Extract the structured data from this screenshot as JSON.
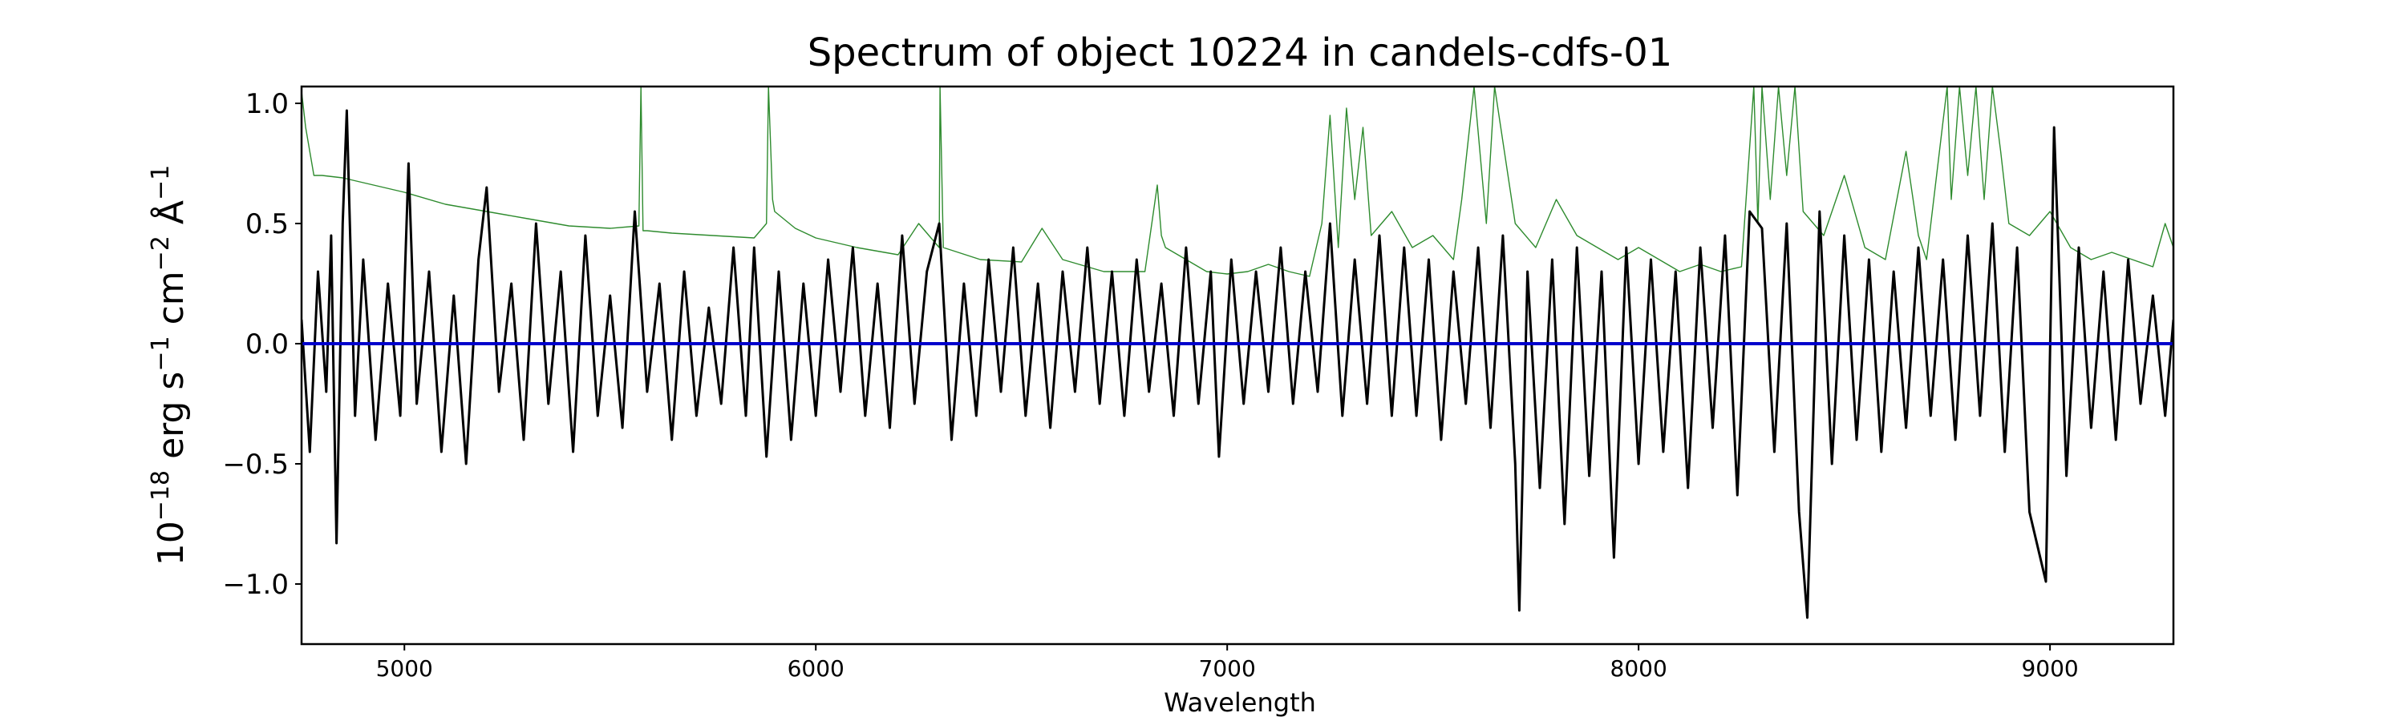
{
  "chart_data": {
    "type": "line",
    "title": "Spectrum of object 10224 in candels-cdfs-01",
    "xlabel": "Wavelength",
    "ylabel_parts": {
      "base": "10",
      "exp1": "−18",
      "erg": " erg s",
      "exp2": "−1",
      "cm": " cm",
      "exp3": "−2",
      "ang": " Å",
      "exp4": "−1"
    },
    "xlim": [
      4750,
      9300
    ],
    "ylim": [
      -1.25,
      1.07
    ],
    "x_ticks": [
      5000,
      6000,
      7000,
      8000,
      9000
    ],
    "x_tick_labels": [
      "5000",
      "6000",
      "7000",
      "8000",
      "9000"
    ],
    "y_ticks": [
      -1.0,
      -0.5,
      0.0,
      0.5,
      1.0
    ],
    "y_tick_labels": [
      "−1.0",
      "−0.5",
      "0.0",
      "0.5",
      "1.0"
    ],
    "grid": false,
    "legend": "none",
    "series": [
      {
        "role": "flux",
        "color": "#000000",
        "x": [
          4750,
          4770,
          4790,
          4810,
          4822,
          4835,
          4850,
          4860,
          4880,
          4900,
          4930,
          4960,
          4990,
          5010,
          5030,
          5060,
          5090,
          5120,
          5150,
          5180,
          5200,
          5230,
          5260,
          5290,
          5320,
          5350,
          5380,
          5410,
          5440,
          5470,
          5500,
          5530,
          5560,
          5590,
          5620,
          5650,
          5680,
          5710,
          5740,
          5770,
          5800,
          5830,
          5850,
          5880,
          5910,
          5940,
          5970,
          6000,
          6030,
          6060,
          6090,
          6120,
          6150,
          6180,
          6210,
          6240,
          6270,
          6300,
          6330,
          6360,
          6390,
          6420,
          6450,
          6480,
          6510,
          6540,
          6570,
          6600,
          6630,
          6660,
          6690,
          6720,
          6750,
          6780,
          6810,
          6840,
          6870,
          6900,
          6930,
          6960,
          6980,
          7010,
          7040,
          7070,
          7100,
          7130,
          7160,
          7190,
          7220,
          7250,
          7280,
          7310,
          7340,
          7370,
          7400,
          7430,
          7460,
          7490,
          7520,
          7550,
          7580,
          7610,
          7640,
          7670,
          7700,
          7710,
          7730,
          7760,
          7790,
          7820,
          7850,
          7880,
          7910,
          7940,
          7970,
          8000,
          8030,
          8060,
          8090,
          8120,
          8150,
          8180,
          8210,
          8240,
          8270,
          8300,
          8330,
          8360,
          8390,
          8410,
          8440,
          8470,
          8500,
          8530,
          8560,
          8590,
          8620,
          8650,
          8680,
          8710,
          8740,
          8770,
          8800,
          8830,
          8860,
          8890,
          8920,
          8950,
          8990,
          9010,
          9040,
          9070,
          9100,
          9130,
          9160,
          9190,
          9220,
          9250,
          9280,
          9300
        ],
        "y": [
          0.1,
          -0.45,
          0.3,
          -0.2,
          0.45,
          -0.83,
          0.5,
          0.97,
          -0.3,
          0.35,
          -0.4,
          0.25,
          -0.3,
          0.75,
          -0.25,
          0.3,
          -0.45,
          0.2,
          -0.5,
          0.35,
          0.65,
          -0.2,
          0.25,
          -0.4,
          0.5,
          -0.25,
          0.3,
          -0.45,
          0.45,
          -0.3,
          0.2,
          -0.35,
          0.55,
          -0.2,
          0.25,
          -0.4,
          0.3,
          -0.3,
          0.15,
          -0.25,
          0.4,
          -0.3,
          0.4,
          -0.47,
          0.3,
          -0.4,
          0.25,
          -0.3,
          0.35,
          -0.2,
          0.4,
          -0.3,
          0.25,
          -0.35,
          0.45,
          -0.25,
          0.3,
          0.5,
          -0.4,
          0.25,
          -0.3,
          0.35,
          -0.2,
          0.4,
          -0.3,
          0.25,
          -0.35,
          0.3,
          -0.2,
          0.4,
          -0.25,
          0.3,
          -0.3,
          0.35,
          -0.2,
          0.25,
          -0.3,
          0.4,
          -0.25,
          0.3,
          -0.47,
          0.35,
          -0.25,
          0.3,
          -0.2,
          0.4,
          -0.25,
          0.3,
          -0.2,
          0.5,
          -0.3,
          0.35,
          -0.25,
          0.45,
          -0.3,
          0.4,
          -0.3,
          0.35,
          -0.4,
          0.3,
          -0.25,
          0.4,
          -0.35,
          0.45,
          -0.5,
          -1.11,
          0.3,
          -0.6,
          0.35,
          -0.75,
          0.4,
          -0.55,
          0.3,
          -0.89,
          0.4,
          -0.5,
          0.35,
          -0.45,
          0.3,
          -0.6,
          0.4,
          -0.35,
          0.45,
          -0.63,
          0.55,
          0.48,
          -0.45,
          0.5,
          -0.7,
          -1.14,
          0.55,
          -0.5,
          0.45,
          -0.4,
          0.35,
          -0.45,
          0.3,
          -0.35,
          0.4,
          -0.3,
          0.35,
          -0.4,
          0.45,
          -0.3,
          0.5,
          -0.45,
          0.4,
          -0.7,
          -0.99,
          0.9,
          -0.55,
          0.4,
          -0.35,
          0.3,
          -0.4,
          0.35,
          -0.25,
          0.2,
          -0.3,
          0.1
        ]
      },
      {
        "role": "zero-line",
        "color": "#0000cc",
        "x": [
          4750,
          9300
        ],
        "y": [
          0.0,
          0.0
        ]
      },
      {
        "role": "error",
        "color": "#2e8b2e",
        "x": [
          4750,
          4760,
          4780,
          4800,
          4850,
          4900,
          5000,
          5100,
          5200,
          5300,
          5400,
          5500,
          5570,
          5575,
          5580,
          5590,
          5650,
          5750,
          5850,
          5880,
          5885,
          5895,
          5900,
          5950,
          6000,
          6100,
          6200,
          6250,
          6300,
          6302,
          6310,
          6400,
          6500,
          6550,
          6600,
          6700,
          6800,
          6830,
          6840,
          6850,
          6900,
          6950,
          7000,
          7050,
          7100,
          7150,
          7200,
          7230,
          7250,
          7270,
          7290,
          7310,
          7330,
          7350,
          7400,
          7450,
          7500,
          7550,
          7570,
          7600,
          7630,
          7650,
          7700,
          7750,
          7800,
          7850,
          7900,
          7950,
          8000,
          8050,
          8100,
          8150,
          8200,
          8250,
          8280,
          8290,
          8300,
          8320,
          8340,
          8360,
          8380,
          8400,
          8450,
          8500,
          8550,
          8600,
          8650,
          8680,
          8700,
          8750,
          8760,
          8780,
          8800,
          8820,
          8840,
          8860,
          8880,
          8900,
          8950,
          9000,
          9050,
          9100,
          9150,
          9200,
          9250,
          9280,
          9300
        ],
        "y": [
          1.05,
          0.9,
          0.7,
          0.7,
          0.69,
          0.67,
          0.63,
          0.58,
          0.55,
          0.52,
          0.49,
          0.48,
          0.49,
          1.07,
          0.47,
          0.47,
          0.46,
          0.45,
          0.44,
          0.5,
          1.07,
          0.6,
          0.55,
          0.48,
          0.44,
          0.4,
          0.37,
          0.5,
          0.4,
          1.07,
          0.4,
          0.35,
          0.34,
          0.48,
          0.35,
          0.3,
          0.3,
          0.66,
          0.45,
          0.4,
          0.35,
          0.3,
          0.29,
          0.3,
          0.33,
          0.3,
          0.28,
          0.5,
          0.95,
          0.4,
          0.98,
          0.6,
          0.9,
          0.45,
          0.55,
          0.4,
          0.45,
          0.35,
          0.6,
          1.07,
          0.5,
          1.07,
          0.5,
          0.4,
          0.6,
          0.45,
          0.4,
          0.35,
          0.4,
          0.35,
          0.3,
          0.33,
          0.3,
          0.32,
          1.07,
          0.5,
          1.07,
          0.6,
          1.07,
          0.7,
          1.07,
          0.55,
          0.45,
          0.7,
          0.4,
          0.35,
          0.8,
          0.45,
          0.35,
          1.07,
          0.6,
          1.07,
          0.7,
          1.07,
          0.6,
          1.07,
          0.8,
          0.5,
          0.45,
          0.55,
          0.4,
          0.35,
          0.38,
          0.35,
          0.32,
          0.5,
          0.4
        ]
      }
    ]
  }
}
